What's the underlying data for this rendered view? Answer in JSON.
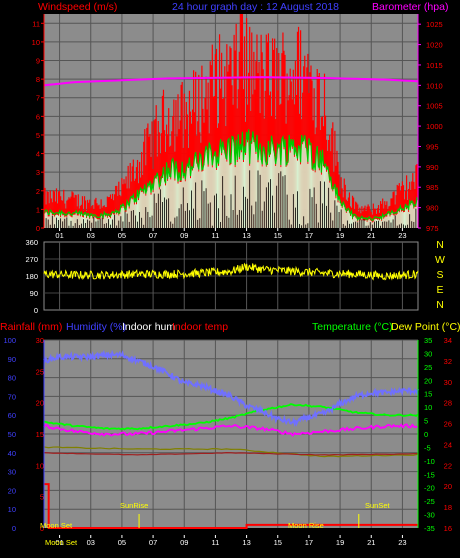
{
  "header": {
    "title": "24 hour graph day : 12 August 2018",
    "left_label": "Windspeed (m/s)",
    "right_label": "Barometer (hpa)"
  },
  "colors": {
    "background": "#000000",
    "panel": "#8c8c8c",
    "grid": "#555555",
    "gust": "#ff0000",
    "avg_wind": "#00c800",
    "wind_fill": "#d8f0d0",
    "barometer": "#ff00ff",
    "wind_dir": "#ffff00",
    "humidity": "#7070ff",
    "temperature": "#00ff00",
    "dew_point": "#ff00ff",
    "indoor_temp": "#a02020",
    "indoor_hum": "#808000",
    "rain": "#ff0000",
    "label_blue": "#4040ff",
    "label_red": "#ff0000",
    "label_white": "#ffffff",
    "label_green": "#00ff00",
    "label_yellow": "#ffff00"
  },
  "x_tick_labels": [
    "01",
    "03",
    "05",
    "07",
    "09",
    "11",
    "13",
    "15",
    "17",
    "19",
    "21",
    "23"
  ],
  "wind_panel": {
    "left_ticks": [
      "0",
      "1",
      "2",
      "3",
      "4",
      "5",
      "6",
      "7",
      "8",
      "9",
      "10",
      "11"
    ],
    "right_ticks": [
      "975",
      "980",
      "985",
      "990",
      "995",
      "1000",
      "1005",
      "1010",
      "1015",
      "1020",
      "1025"
    ]
  },
  "direction_panel": {
    "left_ticks": [
      "0",
      "90",
      "180",
      "270",
      "360"
    ],
    "compass": [
      "N",
      "W",
      "S",
      "E",
      "N"
    ]
  },
  "bottom_panel": {
    "labels": {
      "rainfall": "Rainfall (mm)",
      "humidity": "Humidity (%)",
      "indoor_hum": "Indoor hum",
      "indoor_temp": "Indoor temp",
      "temperature": "Temperature (°C)",
      "dew_point": "Dew Point (°C)"
    },
    "rain_ticks": [
      "0",
      "5",
      "10",
      "15",
      "20",
      "25",
      "30"
    ],
    "hum_ticks": [
      "0",
      "10",
      "20",
      "30",
      "40",
      "50",
      "60",
      "70",
      "80",
      "90",
      "100"
    ],
    "temp_ticks": [
      "-35",
      "-30",
      "-25",
      "-20",
      "-15",
      "-10",
      "-5",
      "0",
      "5",
      "10",
      "15",
      "20",
      "25",
      "30",
      "35"
    ],
    "indoor_ticks": [
      "16",
      "18",
      "20",
      "22",
      "24",
      "26",
      "28",
      "30",
      "32",
      "34"
    ],
    "annotations": {
      "moon_set_top": "Moon Set",
      "sunrise": "SunRise",
      "moon_rise": "Moon Rise",
      "sunset": "SunSet",
      "moon_set_axis": "Moon Set"
    }
  },
  "chart_data": [
    {
      "type": "line",
      "title": "24 hour graph day : 12 August 2018",
      "x_unit": "hour",
      "xlim": [
        0,
        24
      ],
      "ylabel": "Windspeed (m/s)",
      "ylim": [
        0,
        11.5
      ],
      "y2label": "Barometer (hpa)",
      "y2lim": [
        975,
        1027.5
      ],
      "series": [
        {
          "name": "Windspeed (m/s)",
          "color": "#ff0000",
          "x": [
            0,
            1,
            2,
            3,
            4,
            5,
            6,
            7,
            8,
            9,
            10,
            11,
            12,
            13,
            14,
            15,
            16,
            17,
            18,
            19,
            20,
            21,
            22,
            23,
            24
          ],
          "y": [
            1.2,
            1.2,
            1.1,
            1.0,
            1.0,
            1.5,
            2.5,
            3.5,
            4.5,
            4.5,
            5.0,
            5.8,
            6.0,
            6.3,
            6.0,
            6.0,
            6.3,
            6.0,
            5.0,
            2.0,
            0.8,
            0.7,
            1.0,
            1.5,
            2.0
          ]
        },
        {
          "name": "Barometer (hpa)",
          "color": "#ff00ff",
          "x": [
            0,
            2,
            4,
            6,
            8,
            10,
            12,
            14,
            16,
            18,
            20,
            22,
            24
          ],
          "y": [
            1010.0,
            1010.8,
            1011.1,
            1011.4,
            1011.7,
            1011.8,
            1011.9,
            1012.0,
            1011.9,
            1011.8,
            1011.6,
            1011.4,
            1011.0
          ]
        }
      ]
    },
    {
      "type": "line",
      "xlim": [
        0,
        24
      ],
      "ylim": [
        0,
        360
      ],
      "series": [
        {
          "color": "#ffff00",
          "x": [
            0,
            2,
            4,
            6,
            8,
            10,
            12,
            13,
            14,
            16,
            18,
            20,
            22,
            24
          ],
          "y": [
            190,
            185,
            185,
            190,
            190,
            195,
            205,
            230,
            215,
            205,
            195,
            190,
            180,
            190
          ]
        }
      ]
    },
    {
      "type": "line",
      "xlim": [
        0,
        24
      ],
      "series": [
        {
          "name": "Humidity (%)",
          "color": "#7070ff",
          "x": [
            0,
            1,
            2,
            3,
            4,
            5,
            6,
            7,
            8,
            9,
            10,
            11,
            12,
            13,
            14,
            15,
            16,
            17,
            18,
            19,
            20,
            21,
            22,
            23,
            24
          ],
          "y": [
            89,
            91,
            91,
            91,
            92,
            92,
            89,
            86,
            82,
            77,
            76,
            73,
            70,
            65,
            62,
            58,
            56,
            59,
            61,
            66,
            70,
            72,
            72,
            73,
            73
          ]
        },
        {
          "name": "Temperature (°C)",
          "color": "#00ff00",
          "x": [
            0,
            2,
            4,
            6,
            8,
            10,
            12,
            14,
            16,
            18,
            20,
            22,
            24
          ],
          "y": [
            4.5,
            3,
            2,
            2,
            3,
            4,
            6,
            9,
            11,
            10,
            8,
            7,
            7
          ]
        },
        {
          "name": "Dew Point (°C)",
          "color": "#ff00ff",
          "x": [
            0,
            2,
            4,
            6,
            8,
            10,
            12,
            14,
            16,
            18,
            20,
            22,
            24
          ],
          "y": [
            3,
            1,
            0,
            0,
            1,
            2,
            3,
            2,
            0,
            1,
            2,
            3,
            3
          ]
        },
        {
          "name": "Indoor temp",
          "color": "#a02020",
          "x": [
            0,
            6,
            12,
            18,
            24
          ],
          "y": [
            23.2,
            23.0,
            23.2,
            23.0,
            23.1
          ]
        },
        {
          "name": "Indoor hum",
          "color": "#808000",
          "x": [
            0,
            6,
            12,
            18,
            24
          ],
          "y": [
            43,
            42,
            42,
            38,
            39
          ]
        },
        {
          "name": "Rainfall (mm)",
          "color": "#ff0000",
          "x": [
            0,
            0.3,
            0.3,
            13,
            13,
            24
          ],
          "y": [
            7,
            7,
            0,
            0,
            0.5,
            0.5
          ]
        }
      ]
    }
  ]
}
